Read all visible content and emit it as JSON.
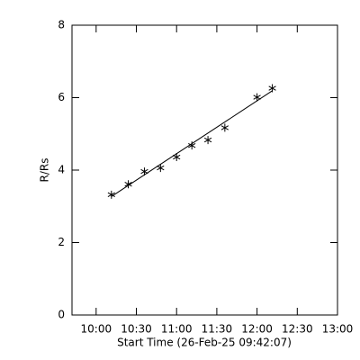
{
  "chart_data": {
    "type": "scatter",
    "xlabel": "Start Time (26-Feb-25 09:42:07)",
    "ylabel": "R/Rs",
    "xlim": [
      9.7,
      13.0
    ],
    "xticks": [
      {
        "value": 10.0,
        "label": "10:00"
      },
      {
        "value": 10.5,
        "label": "10:30"
      },
      {
        "value": 11.0,
        "label": "11:00"
      },
      {
        "value": 11.5,
        "label": "11:30"
      },
      {
        "value": 12.0,
        "label": "12:00"
      },
      {
        "value": 12.5,
        "label": "12:30"
      },
      {
        "value": 13.0,
        "label": "13:00"
      }
    ],
    "ylim": [
      0,
      8
    ],
    "yticks": [
      0,
      2,
      4,
      6,
      8
    ],
    "series": [
      {
        "style": "asterisk",
        "color": "#000000",
        "x": [
          10.19,
          10.4,
          10.6,
          10.8,
          11.0,
          11.19,
          11.39,
          11.6,
          12.0,
          12.19
        ],
        "values": [
          3.32,
          3.61,
          3.96,
          4.06,
          4.36,
          4.68,
          4.83,
          5.17,
          6.01,
          6.26
        ]
      },
      {
        "style": "line",
        "color": "#000000",
        "x": [
          10.19,
          12.19
        ],
        "values": [
          3.27,
          6.19
        ]
      }
    ]
  }
}
